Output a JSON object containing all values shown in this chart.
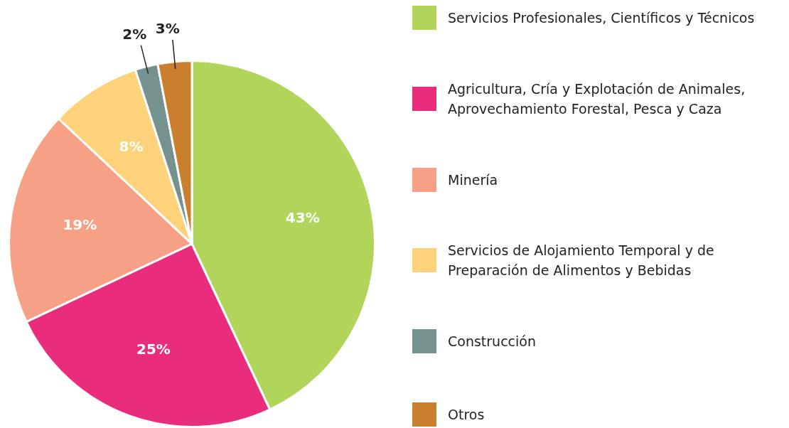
{
  "chart_data": {
    "type": "pie",
    "categories": [
      "Servicios Profesionales, Científicos y Técnicos",
      "Agricultura, Cría y Explotación de Animales, Aprovechamiento Forestal, Pesca y Caza",
      "Minería",
      "Servicios de Alojamiento Temporal y de Preparación de Alimentos y Bebidas",
      "Construcción",
      "Otros"
    ],
    "values": [
      43,
      25,
      19,
      8,
      2,
      3
    ],
    "value_labels": [
      "43%",
      "25%",
      "19%",
      "8%",
      "2%",
      "3%"
    ],
    "colors": [
      "#b1d55a",
      "#e92c7c",
      "#f6a186",
      "#fdd27b",
      "#76928f",
      "#c97f2e"
    ],
    "legend": "right"
  }
}
